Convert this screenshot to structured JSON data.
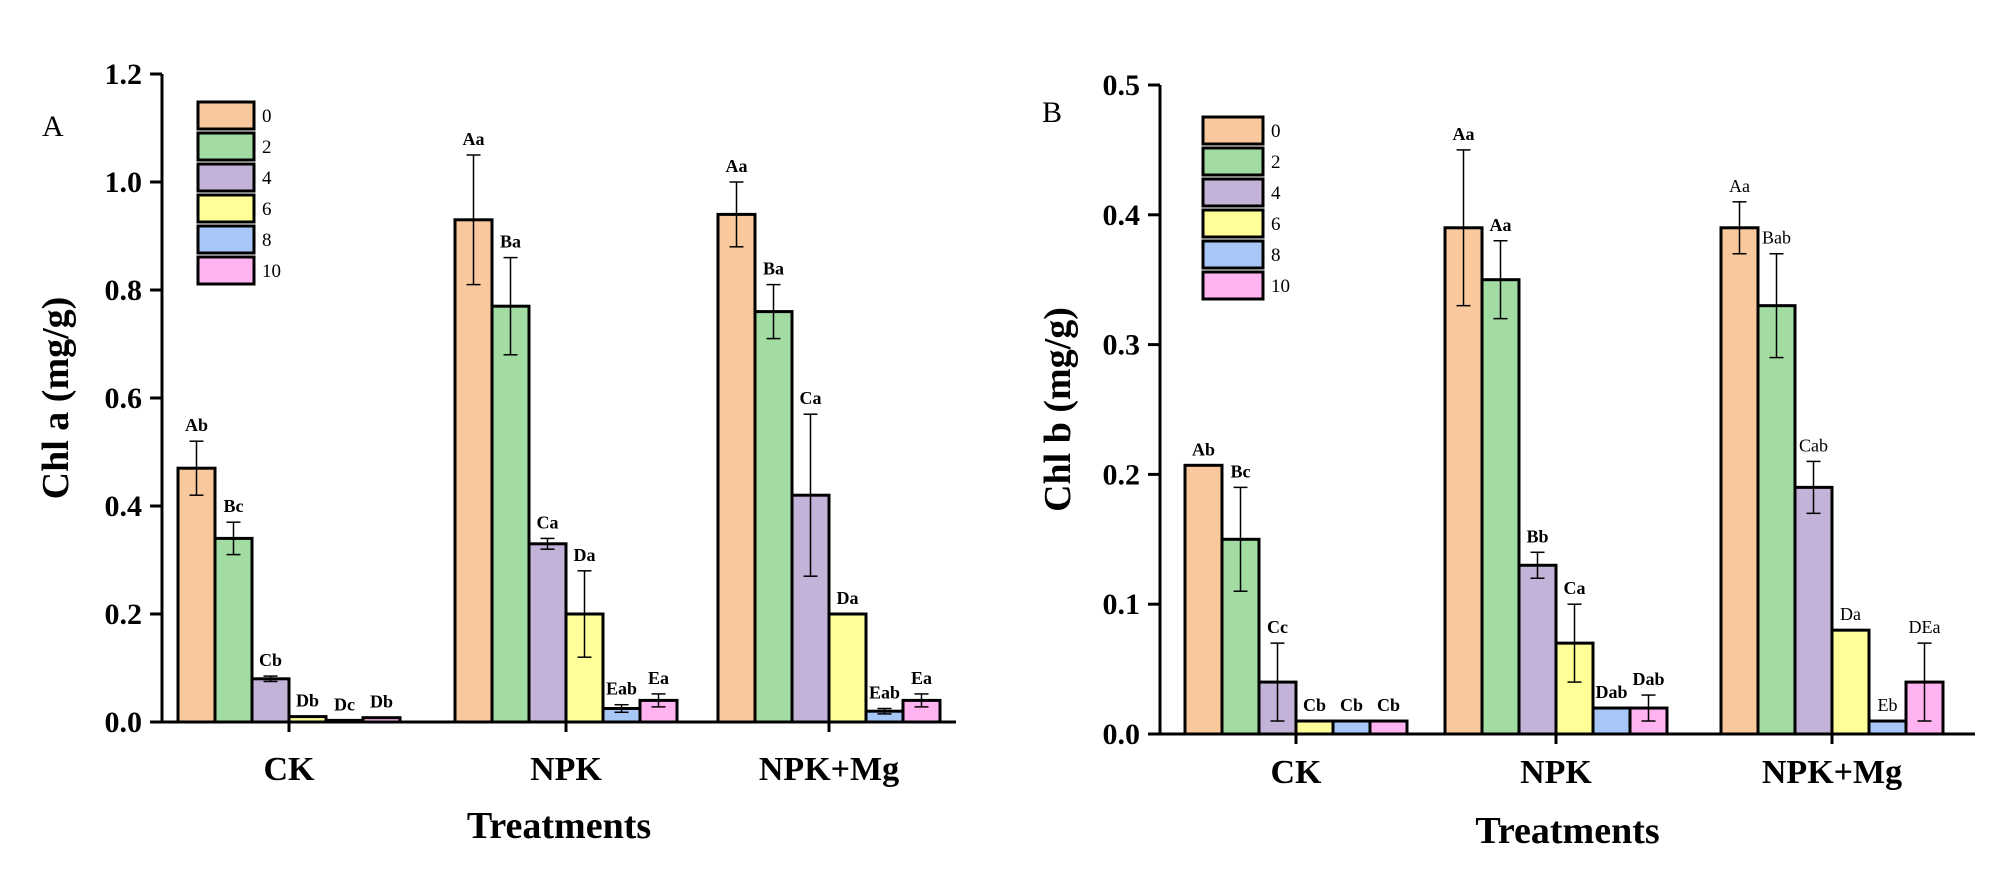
{
  "series_colors": [
    "#F9C99D",
    "#A3DCA2",
    "#C3B3D9",
    "#FFFF99",
    "#A7C7F7",
    "#FFB3F0"
  ],
  "chart_data": [
    {
      "type": "bar",
      "panel_label": "A",
      "categories": [
        "CK",
        "NPK",
        "NPK+Mg"
      ],
      "xlabel": "Treatments",
      "ylabel": "Chl a (mg/g)",
      "ylim": [
        0,
        1.2
      ],
      "yticks": [
        "0.0",
        "0.2",
        "0.4",
        "0.6",
        "0.8",
        "1.0",
        "1.2"
      ],
      "legend_position": "top-left",
      "grid": false,
      "series": [
        {
          "name": "0",
          "values": [
            0.47,
            0.93,
            0.94
          ],
          "errors": [
            0.05,
            0.12,
            0.06
          ],
          "labels": [
            "Ab",
            "Aa",
            "Aa"
          ]
        },
        {
          "name": "2",
          "values": [
            0.34,
            0.77,
            0.76
          ],
          "errors": [
            0.03,
            0.09,
            0.05
          ],
          "labels": [
            "Bc",
            "Ba",
            "Ba"
          ]
        },
        {
          "name": "4",
          "values": [
            0.08,
            0.33,
            0.42
          ],
          "errors": [
            0.005,
            0.01,
            0.15
          ],
          "labels": [
            "Cb",
            "Ca",
            "Ca"
          ]
        },
        {
          "name": "6",
          "values": [
            0.01,
            0.2,
            0.2
          ],
          "errors": [
            0,
            0.08,
            0
          ],
          "labels": [
            "Db",
            "Da",
            "Da"
          ]
        },
        {
          "name": "8",
          "values": [
            0.003,
            0.025,
            0.02
          ],
          "errors": [
            0,
            0.007,
            0.005
          ],
          "labels": [
            "Dc",
            "Eab",
            "Eab"
          ]
        },
        {
          "name": "10",
          "values": [
            0.008,
            0.04,
            0.04
          ],
          "errors": [
            0,
            0.012,
            0.012
          ],
          "labels": [
            "Db",
            "Ea",
            "Ea"
          ]
        }
      ]
    },
    {
      "type": "bar",
      "panel_label": "B",
      "categories": [
        "CK",
        "NPK",
        "NPK+Mg"
      ],
      "xlabel": "Treatments",
      "ylabel": "Chl b (mg/g)",
      "ylim": [
        0,
        0.5
      ],
      "yticks": [
        "0.0",
        "0.1",
        "0.2",
        "0.3",
        "0.4",
        "0.5"
      ],
      "legend_position": "top-left",
      "grid": false,
      "series": [
        {
          "name": "0",
          "values": [
            0.207,
            0.39,
            0.39
          ],
          "errors": [
            0,
            0.06,
            0.02
          ],
          "labels": [
            "Ab",
            "Aa",
            "Aa"
          ]
        },
        {
          "name": "2",
          "values": [
            0.15,
            0.35,
            0.33
          ],
          "errors": [
            0.04,
            0.03,
            0.04
          ],
          "labels": [
            "Bc",
            "Aa",
            "Bab"
          ]
        },
        {
          "name": "4",
          "values": [
            0.04,
            0.13,
            0.19
          ],
          "errors": [
            0.03,
            0.01,
            0.02
          ],
          "labels": [
            "Cc",
            "Bb",
            "Cab"
          ]
        },
        {
          "name": "6",
          "values": [
            0.01,
            0.07,
            0.08
          ],
          "errors": [
            0,
            0.03,
            0
          ],
          "labels": [
            "Cb",
            "Ca",
            "Da"
          ]
        },
        {
          "name": "8",
          "values": [
            0.01,
            0.02,
            0.01
          ],
          "errors": [
            0,
            0,
            0
          ],
          "labels": [
            "Cb",
            "Dab",
            "Eb"
          ]
        },
        {
          "name": "10",
          "values": [
            0.01,
            0.02,
            0.04
          ],
          "errors": [
            0,
            0.01,
            0.03
          ],
          "labels": [
            "Cb",
            "Dab",
            "DEa"
          ]
        }
      ]
    }
  ]
}
